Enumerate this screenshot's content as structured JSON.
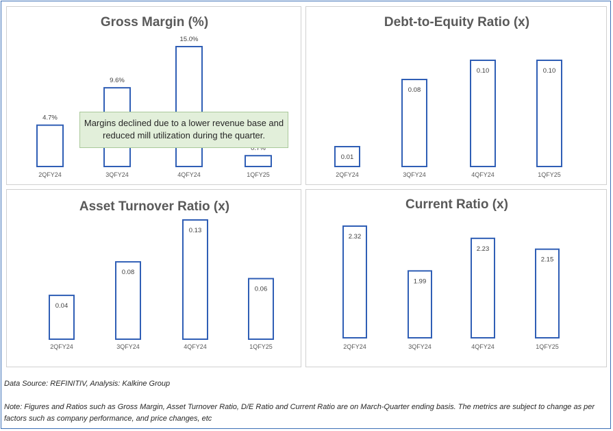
{
  "chart_data": [
    {
      "type": "bar",
      "title": "Gross Margin (%)",
      "categories": [
        "2QFY24",
        "3QFY24",
        "4QFY24",
        "1QFY25"
      ],
      "values": [
        4.7,
        9.6,
        15.0,
        0.7
      ],
      "value_labels": [
        "4.7%",
        "9.6%",
        "15.0%",
        "0.7%"
      ],
      "ylim": [
        0,
        15
      ],
      "grid": false,
      "bar_style": "outline",
      "annotation": "Margins declined due to a lower revenue base and reduced mill utilization during the quarter."
    },
    {
      "type": "bar",
      "title": "Debt-to-Equity Ratio (x)",
      "categories": [
        "2QFY24",
        "3QFY24",
        "4QFY24",
        "1QFY25"
      ],
      "values": [
        0.01,
        0.08,
        0.1,
        0.1
      ],
      "value_labels": [
        "0.01",
        "0.08",
        "0.10",
        "0.10"
      ],
      "ylim": [
        0,
        0.1
      ],
      "grid": false,
      "bar_style": "outline"
    },
    {
      "type": "bar",
      "title": "Asset Turnover Ratio (x)",
      "categories": [
        "2QFY24",
        "3QFY24",
        "4QFY24",
        "1QFY25"
      ],
      "values": [
        0.04,
        0.08,
        0.13,
        0.06
      ],
      "value_labels": [
        "0.04",
        "0.08",
        "0.13",
        "0.06"
      ],
      "ylim": [
        0,
        0.13
      ],
      "grid": false,
      "bar_style": "outline"
    },
    {
      "type": "bar",
      "title": "Current Ratio (x)",
      "categories": [
        "2QFY24",
        "3QFY24",
        "4QFY24",
        "1QFY25"
      ],
      "values": [
        2.32,
        1.99,
        2.23,
        2.15
      ],
      "value_labels": [
        "2.32",
        "1.99",
        "2.23",
        "2.15"
      ],
      "ylim": [
        1.8,
        2.32
      ],
      "grid": false,
      "bar_style": "outline"
    }
  ],
  "footer": {
    "source": "Data Source: REFINITIV, Analysis: Kalkine Group",
    "note": "Note: Figures and Ratios such as Gross Margin, Asset Turnover Ratio, D/E Ratio and Current Ratio are on March-Quarter ending basis. The metrics are subject to change as per factors such as company performance, and price changes, etc"
  },
  "colors": {
    "bar_outline": "#2f5eb5",
    "frame_border": "#3b6fb6",
    "callout_fill": "#e2efda"
  }
}
